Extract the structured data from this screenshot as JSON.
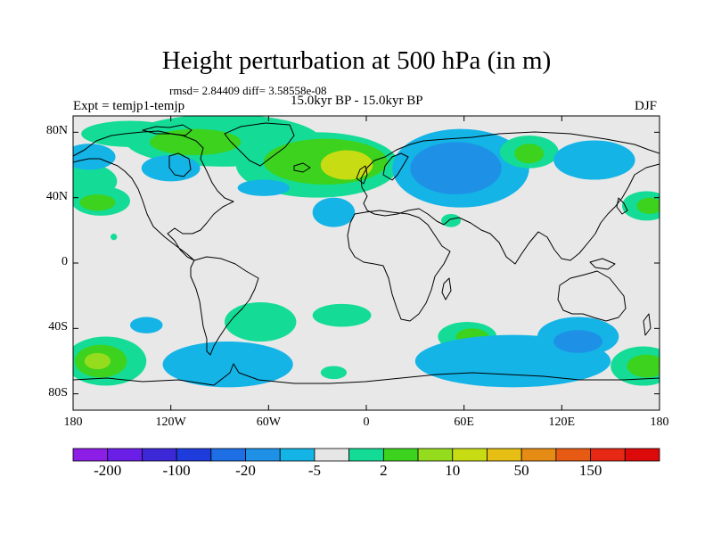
{
  "title": "Height perturbation at 500 hPa (in m)",
  "stats": "rmsd= 2.84409 diff= 3.58558e-08",
  "experiment": "Expt = temjp1-temjp",
  "period": "15.0kyr BP - 15.0kyr BP",
  "season": "DJF",
  "map": {
    "lon_range": [
      -180,
      180
    ],
    "lat_range": [
      -90,
      90
    ],
    "y_ticks": [
      {
        "lat": 80,
        "label": "80N"
      },
      {
        "lat": 40,
        "label": "40N"
      },
      {
        "lat": 0,
        "label": "0"
      },
      {
        "lat": -40,
        "label": "40S"
      },
      {
        "lat": -80,
        "label": "80S"
      }
    ],
    "x_ticks": [
      {
        "lon": -180,
        "label": "180"
      },
      {
        "lon": -120,
        "label": "120W"
      },
      {
        "lon": -60,
        "label": "60W"
      },
      {
        "lon": 0,
        "label": "0"
      },
      {
        "lon": 60,
        "label": "60E"
      },
      {
        "lon": 120,
        "label": "120E"
      },
      {
        "lon": 180,
        "label": "180"
      }
    ],
    "background_color": "#e8e8e8"
  },
  "colorbar": {
    "colors": [
      "#8c1ee6",
      "#6a1ee6",
      "#3c28d7",
      "#1e3cdc",
      "#1e6ee6",
      "#1e91e6",
      "#14b4e6",
      "#e6e6e6",
      "#14dc96",
      "#3cd21e",
      "#96dc1e",
      "#c8dc14",
      "#e6be14",
      "#e68c14",
      "#e65a14",
      "#e62814",
      "#dc0a0a"
    ],
    "labels": [
      {
        "after_index": 0,
        "text": "-200"
      },
      {
        "after_index": 2,
        "text": "-100"
      },
      {
        "after_index": 4,
        "text": "-20"
      },
      {
        "after_index": 6,
        "text": "-5"
      },
      {
        "after_index": 8,
        "text": "2"
      },
      {
        "after_index": 10,
        "text": "10"
      },
      {
        "after_index": 12,
        "text": "50"
      },
      {
        "after_index": 14,
        "text": "150"
      }
    ]
  },
  "contour_fields": [
    {
      "name": "n-pacific-blob",
      "lon": -178,
      "lat": 50,
      "rlon": 25,
      "rlat": 12,
      "color": "#14dc96",
      "kind": "perturbation"
    },
    {
      "name": "arctic-canada-lobe",
      "lon": -145,
      "lat": 79,
      "rlon": 30,
      "rlat": 8,
      "color": "#14dc96",
      "kind": "perturbation"
    },
    {
      "name": "n-america-green",
      "lon": -88,
      "lat": 75,
      "rlon": 60,
      "rlat": 16,
      "color": "#14dc96",
      "kind": "perturbation"
    },
    {
      "name": "greenland-green",
      "lon": -30,
      "lat": 60,
      "rlon": 50,
      "rlat": 20,
      "color": "#14dc96",
      "kind": "perturbation"
    },
    {
      "name": "n-atlantic-strong",
      "lon": -25,
      "lat": 62,
      "rlon": 38,
      "rlat": 14,
      "color": "#3cd21e",
      "kind": "perturbation"
    },
    {
      "name": "uk-peak",
      "lon": -12,
      "lat": 60,
      "rlon": 16,
      "rlat": 9,
      "color": "#c8dc14",
      "kind": "perturbation"
    },
    {
      "name": "arctic-canada-green",
      "lon": -105,
      "lat": 74,
      "rlon": 28,
      "rlat": 8,
      "color": "#3cd21e",
      "kind": "perturbation"
    },
    {
      "name": "alaska-blue",
      "lon": -170,
      "lat": 65,
      "rlon": 16,
      "rlat": 8,
      "color": "#14b4e6",
      "kind": "perturbation"
    },
    {
      "name": "canada-blue",
      "lon": -120,
      "lat": 58,
      "rlon": 18,
      "rlat": 8,
      "color": "#14b4e6",
      "kind": "perturbation"
    },
    {
      "name": "labrador-blue",
      "lon": -63,
      "lat": 46,
      "rlon": 16,
      "rlat": 5,
      "color": "#14b4e6",
      "kind": "perturbation"
    },
    {
      "name": "n-pacific-east-green",
      "lon": -163,
      "lat": 38,
      "rlon": 18,
      "rlat": 9,
      "color": "#14dc96",
      "kind": "perturbation"
    },
    {
      "name": "n-pacific-east-core",
      "lon": -165,
      "lat": 37,
      "rlon": 11,
      "rlat": 5,
      "color": "#3cd21e",
      "kind": "perturbation"
    },
    {
      "name": "hawaii-speck",
      "lon": -155,
      "lat": 16,
      "rlon": 2,
      "rlat": 2,
      "color": "#14dc96",
      "kind": "perturbation"
    },
    {
      "name": "atlantic-blue-spot",
      "lon": -20,
      "lat": 31,
      "rlon": 13,
      "rlat": 9,
      "color": "#14b4e6",
      "kind": "perturbation"
    },
    {
      "name": "russia-blue",
      "lon": 58,
      "lat": 58,
      "rlon": 42,
      "rlat": 24,
      "color": "#14b4e6",
      "kind": "perturbation"
    },
    {
      "name": "russia-blue-core",
      "lon": 55,
      "lat": 58,
      "rlon": 28,
      "rlat": 16,
      "color": "#1e91e6",
      "kind": "perturbation"
    },
    {
      "name": "siberia-green",
      "lon": 100,
      "lat": 68,
      "rlon": 18,
      "rlat": 10,
      "color": "#14dc96",
      "kind": "perturbation"
    },
    {
      "name": "siberia-green-core",
      "lon": 100,
      "lat": 67,
      "rlon": 9,
      "rlat": 6,
      "color": "#3cd21e",
      "kind": "perturbation"
    },
    {
      "name": "far-east-blue",
      "lon": 140,
      "lat": 63,
      "rlon": 25,
      "rlat": 12,
      "color": "#14b4e6",
      "kind": "perturbation"
    },
    {
      "name": "n-pacific-west-green",
      "lon": 172,
      "lat": 35,
      "rlon": 15,
      "rlat": 9,
      "color": "#14dc96",
      "kind": "perturbation"
    },
    {
      "name": "n-pacific-west-core",
      "lon": 174,
      "lat": 35,
      "rlon": 8,
      "rlat": 5,
      "color": "#3cd21e",
      "kind": "perturbation"
    },
    {
      "name": "mideast-green",
      "lon": 52,
      "lat": 26,
      "rlon": 6,
      "rlat": 4,
      "color": "#14dc96",
      "kind": "perturbation"
    },
    {
      "name": "s-pacific-green",
      "lon": -160,
      "lat": -60,
      "rlon": 25,
      "rlat": 15,
      "color": "#14dc96",
      "kind": "perturbation"
    },
    {
      "name": "s-pacific-green-core",
      "lon": -163,
      "lat": -60,
      "rlon": 16,
      "rlat": 10,
      "color": "#3cd21e",
      "kind": "perturbation"
    },
    {
      "name": "s-pacific-peak",
      "lon": -165,
      "lat": -60,
      "rlon": 8,
      "rlat": 5,
      "color": "#96dc1e",
      "kind": "perturbation"
    },
    {
      "name": "s-pacific-blue",
      "lon": -135,
      "lat": -38,
      "rlon": 10,
      "rlat": 5,
      "color": "#14b4e6",
      "kind": "perturbation"
    },
    {
      "name": "southern-ocean-blue",
      "lon": -85,
      "lat": -62,
      "rlon": 40,
      "rlat": 14,
      "color": "#14b4e6",
      "kind": "perturbation"
    },
    {
      "name": "s-america-green",
      "lon": -65,
      "lat": -36,
      "rlon": 22,
      "rlat": 12,
      "color": "#14dc96",
      "kind": "perturbation"
    },
    {
      "name": "s-atlantic-green",
      "lon": -15,
      "lat": -32,
      "rlon": 18,
      "rlat": 7,
      "color": "#14dc96",
      "kind": "perturbation"
    },
    {
      "name": "indian-ocean-green",
      "lon": 62,
      "lat": -45,
      "rlon": 18,
      "rlat": 9,
      "color": "#14dc96",
      "kind": "perturbation"
    },
    {
      "name": "indian-ocean-core",
      "lon": 65,
      "lat": -45,
      "rlon": 10,
      "rlat": 5,
      "color": "#3cd21e",
      "kind": "perturbation"
    },
    {
      "name": "southern-ocean-blue-east",
      "lon": 90,
      "lat": -60,
      "rlon": 60,
      "rlat": 16,
      "color": "#14b4e6",
      "kind": "perturbation"
    },
    {
      "name": "australia-south-blue",
      "lon": 130,
      "lat": -45,
      "rlon": 25,
      "rlat": 12,
      "color": "#14b4e6",
      "kind": "perturbation"
    },
    {
      "name": "australia-south-core",
      "lon": 130,
      "lat": -48,
      "rlon": 15,
      "rlat": 7,
      "color": "#1e91e6",
      "kind": "perturbation"
    },
    {
      "name": "new-zealand-green",
      "lon": 170,
      "lat": -63,
      "rlon": 20,
      "rlat": 12,
      "color": "#14dc96",
      "kind": "perturbation"
    },
    {
      "name": "new-zealand-core",
      "lon": 172,
      "lat": -63,
      "rlon": 12,
      "rlat": 7,
      "color": "#3cd21e",
      "kind": "perturbation"
    },
    {
      "name": "antarctic-pen-green",
      "lon": -20,
      "lat": -67,
      "rlon": 8,
      "rlat": 4,
      "color": "#14dc96",
      "kind": "perturbation"
    }
  ]
}
